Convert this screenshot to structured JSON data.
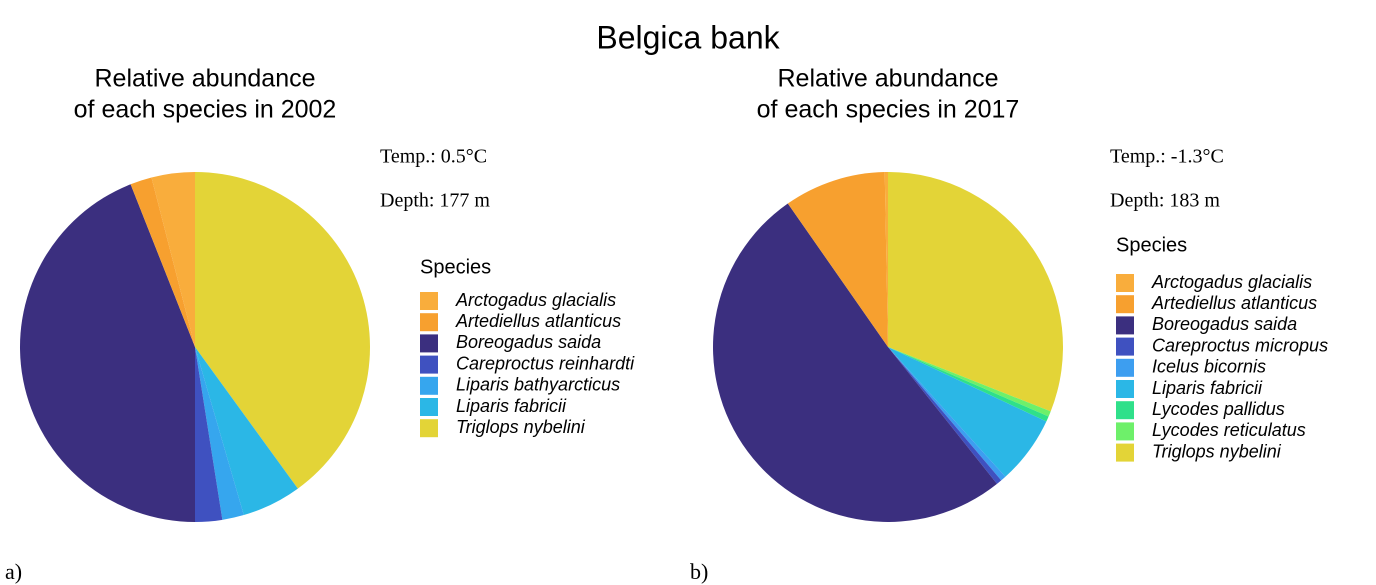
{
  "title": "Belgica bank",
  "chart_data": [
    {
      "type": "pie",
      "title": [
        "Relative abundance",
        "of each species in 2002"
      ],
      "annotations": [
        "Temp.: 0.5°C",
        "Depth: 177 m"
      ],
      "legend_title": "Species",
      "panel_label": "a)",
      "categories": [
        "Arctogadus glacialis",
        "Artediellus atlanticus",
        "Boreogadus saida",
        "Careproctus reinhardti",
        "Liparis bathyarcticus",
        "Liparis fabricii",
        "Triglops nybelini"
      ],
      "values": [
        4,
        2,
        44,
        2.5,
        2,
        5.5,
        40
      ],
      "colors": [
        "#f9ad3c",
        "#f7a02f",
        "#3b2f7f",
        "#3f51c0",
        "#36a6ee",
        "#2bb7e6",
        "#e3d437"
      ]
    },
    {
      "type": "pie",
      "title": [
        "Relative abundance",
        "of each species in 2017"
      ],
      "annotations": [
        "Temp.: -1.3°C",
        "Depth: 183 m"
      ],
      "legend_title": "Species",
      "panel_label": "b)",
      "categories": [
        "Arctogadus glacialis",
        "Artediellus atlanticus",
        "Boreogadus saida",
        "Careproctus micropus",
        "Icelus bicornis",
        "Liparis fabricii",
        "Lycodes pallidus",
        "Lycodes reticulatus",
        "Triglops nybelini"
      ],
      "values": [
        0.3,
        9.4,
        51,
        0.5,
        0.5,
        6.3,
        0.5,
        0.5,
        31
      ],
      "colors": [
        "#f9ad3c",
        "#f7a02f",
        "#3b2f7f",
        "#3f51c0",
        "#3d9ef0",
        "#2bb7e6",
        "#2fe08a",
        "#6ef06a",
        "#e3d437"
      ]
    }
  ]
}
